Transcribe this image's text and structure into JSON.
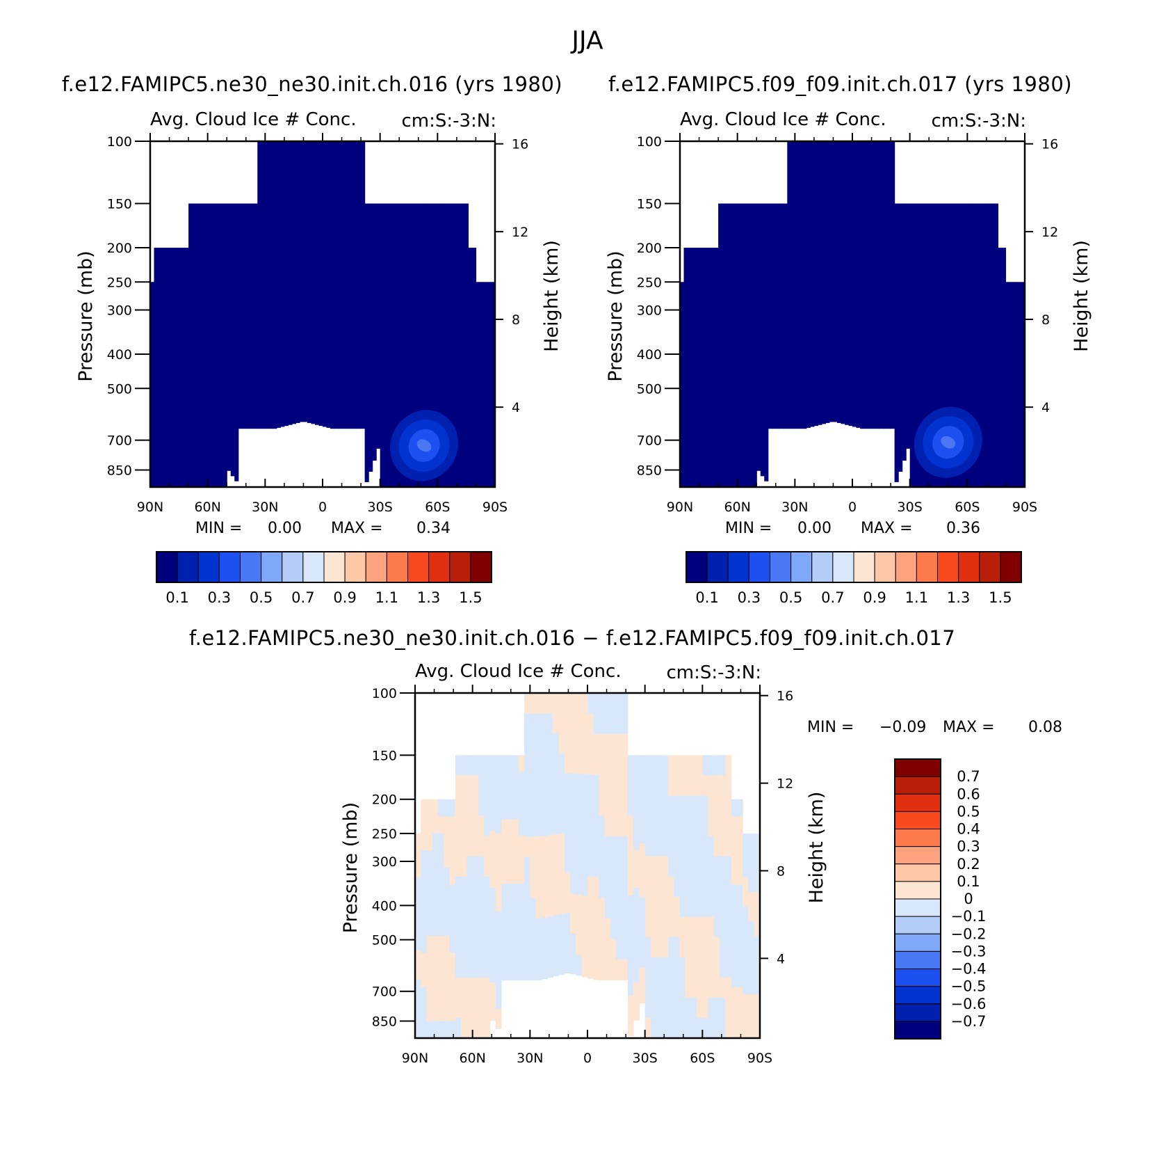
{
  "figure": {
    "season": "JJA",
    "panel_a_title": "f.e12.FAMIPC5.ne30_ne30.init.ch.016 (yrs 1980)",
    "panel_b_title": "f.e12.FAMIPC5.f09_f09.init.ch.017 (yrs 1980)",
    "panel_c_title": "f.e12.FAMIPC5.ne30_ne30.init.ch.016 − f.e12.FAMIPC5.f09_f09.init.ch.017"
  },
  "chart_data": [
    {
      "type": "heatmap",
      "panel": "a",
      "variable": "Avg. Cloud Ice # Conc.",
      "units": "cm:S:-3:N:",
      "ylabel": "Pressure (mb)",
      "y2label": "Height (km)",
      "x_ticks": [
        "90N",
        "60N",
        "30N",
        "0",
        "30S",
        "60S",
        "90S"
      ],
      "y_ticks": [
        100,
        150,
        200,
        250,
        300,
        400,
        500,
        700,
        850
      ],
      "y2_ticks": [
        4,
        8,
        12,
        16
      ],
      "min_label": "MIN =",
      "min_value": "0.00",
      "max_label": "MAX =",
      "max_value": "0.34",
      "colorbar_levels": [
        0.1,
        0.2,
        0.3,
        0.4,
        0.5,
        0.6,
        0.7,
        0.8,
        0.9,
        1.0,
        1.1,
        1.2,
        1.3,
        1.4,
        1.5
      ],
      "colorbar_labels": [
        "0.1",
        "0.3",
        "0.5",
        "0.7",
        "0.9",
        "1.1",
        "1.3",
        "1.5"
      ],
      "colors": [
        "#00007f",
        "#0020b0",
        "#0033d0",
        "#1c50f0",
        "#4a78f5",
        "#80a8f8",
        "#b4ccf8",
        "#d8e8fa",
        "#fde5d4",
        "#fcc8a8",
        "#fca27e",
        "#fc7a4c",
        "#f84a1e",
        "#e03010",
        "#b81e08",
        "#800000"
      ],
      "max_center_lat": -53,
      "max_center_p": 725
    },
    {
      "type": "heatmap",
      "panel": "b",
      "variable": "Avg. Cloud Ice # Conc.",
      "units": "cm:S:-3:N:",
      "ylabel": "Pressure (mb)",
      "y2label": "Height (km)",
      "x_ticks": [
        "90N",
        "60N",
        "30N",
        "0",
        "30S",
        "60S",
        "90S"
      ],
      "y_ticks": [
        100,
        150,
        200,
        250,
        300,
        400,
        500,
        700,
        850
      ],
      "y2_ticks": [
        4,
        8,
        12,
        16
      ],
      "min_label": "MIN =",
      "min_value": "0.00",
      "max_label": "MAX =",
      "max_value": "0.36",
      "colorbar_levels": [
        0.1,
        0.2,
        0.3,
        0.4,
        0.5,
        0.6,
        0.7,
        0.8,
        0.9,
        1.0,
        1.1,
        1.2,
        1.3,
        1.4,
        1.5
      ],
      "colorbar_labels": [
        "0.1",
        "0.3",
        "0.5",
        "0.7",
        "0.9",
        "1.1",
        "1.3",
        "1.5"
      ],
      "colors": [
        "#00007f",
        "#0020b0",
        "#0033d0",
        "#1c50f0",
        "#4a78f5",
        "#80a8f8",
        "#b4ccf8",
        "#d8e8fa",
        "#fde5d4",
        "#fcc8a8",
        "#fca27e",
        "#fc7a4c",
        "#f84a1e",
        "#e03010",
        "#b81e08",
        "#800000"
      ],
      "max_center_lat": -50,
      "max_center_p": 710
    },
    {
      "type": "heatmap",
      "panel": "c",
      "variable": "Avg. Cloud Ice # Conc.",
      "units": "cm:S:-3:N:",
      "ylabel": "Pressure (mb)",
      "y2label": "Height (km)",
      "x_ticks": [
        "90N",
        "60N",
        "30N",
        "0",
        "30S",
        "60S",
        "90S"
      ],
      "y_ticks": [
        100,
        150,
        200,
        250,
        300,
        400,
        500,
        700,
        850
      ],
      "y2_ticks": [
        4,
        8,
        12,
        16
      ],
      "min_label": "MIN =",
      "min_value": "−0.09",
      "max_label": "MAX =",
      "max_value": "0.08",
      "colorbar_levels": [
        -0.7,
        -0.6,
        -0.5,
        -0.4,
        -0.3,
        -0.2,
        -0.1,
        0,
        0.1,
        0.2,
        0.3,
        0.4,
        0.5,
        0.6,
        0.7
      ],
      "colorbar_labels": [
        "0.7",
        "0.6",
        "0.5",
        "0.4",
        "0.3",
        "0.2",
        "0.1",
        "0",
        "−0.1",
        "−0.2",
        "−0.3",
        "−0.4",
        "−0.5",
        "−0.6",
        "−0.7"
      ],
      "colors": [
        "#800000",
        "#b81e08",
        "#e03010",
        "#f84a1e",
        "#fc7a4c",
        "#fca27e",
        "#fcc8a8",
        "#fde5d4",
        "#d8e8fa",
        "#b4ccf8",
        "#80a8f8",
        "#4a78f5",
        "#1c50f0",
        "#0033d0",
        "#0020b0",
        "#00007f"
      ]
    }
  ]
}
